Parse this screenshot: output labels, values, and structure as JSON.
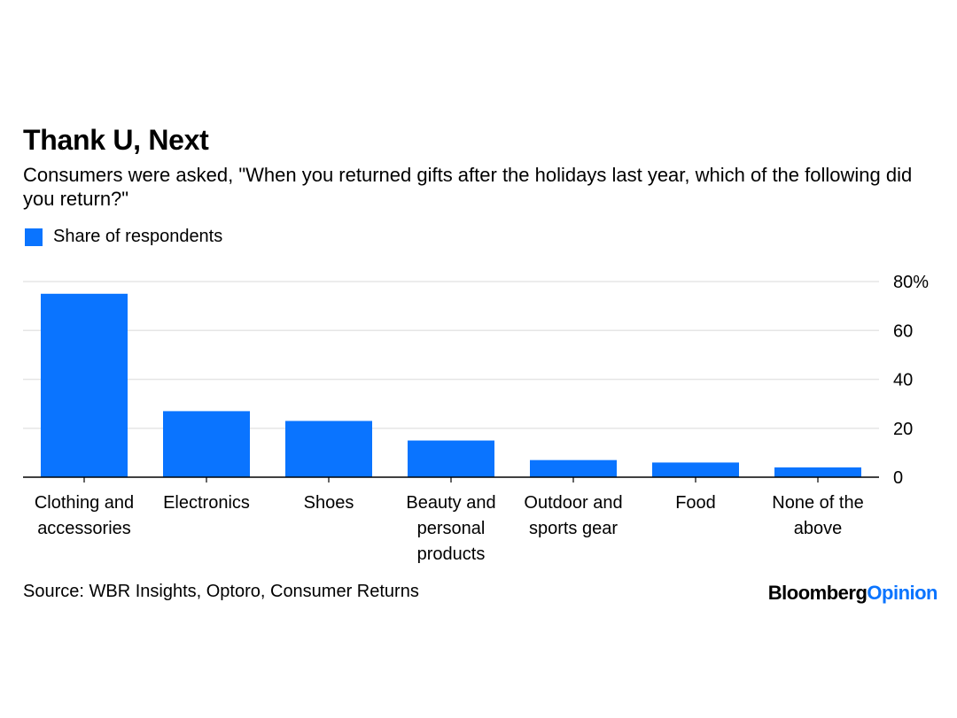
{
  "header": {
    "title": "Thank U, Next",
    "subtitle": "Consumers were asked, \"When you returned gifts after the holidays last year, which of the following did you return?\""
  },
  "legend": {
    "label": "Share of respondents",
    "color": "#0a74ff"
  },
  "footer": {
    "source": "Source: WBR Insights, Optoro, Consumer Returns",
    "brand_part1": "Bloomberg",
    "brand_part2": "Opinion"
  },
  "chart_data": {
    "type": "bar",
    "categories": [
      [
        "Clothing and",
        "accessories"
      ],
      [
        "Electronics"
      ],
      [
        "Shoes"
      ],
      [
        "Beauty and",
        "personal",
        "products"
      ],
      [
        "Outdoor and",
        "sports gear"
      ],
      [
        "Food"
      ],
      [
        "None of the",
        "above"
      ]
    ],
    "series": [
      {
        "name": "Share of respondents",
        "values": [
          75,
          27,
          23,
          15,
          7,
          6,
          4
        ]
      }
    ],
    "ylim": [
      0,
      80
    ],
    "yticks": [
      0,
      20,
      40,
      60,
      80
    ],
    "ytick_labels": [
      "0",
      "20",
      "40",
      "60",
      "80%"
    ],
    "grid": true,
    "bar_color": "#0a74ff",
    "legend_position": "top-left"
  }
}
